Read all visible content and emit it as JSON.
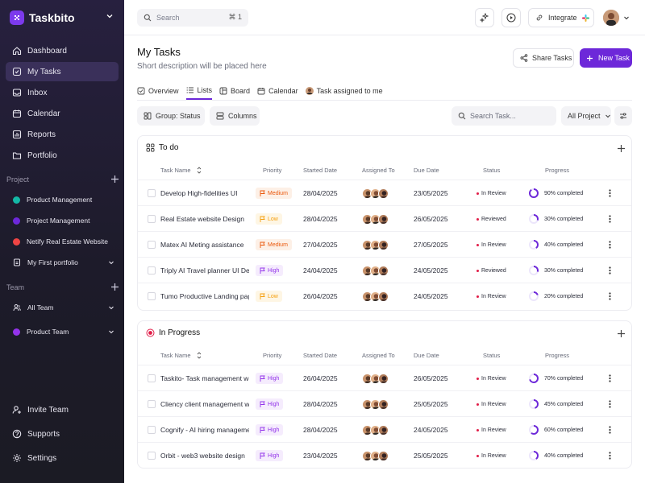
{
  "app": {
    "name": "Taskbito"
  },
  "nav": [
    {
      "label": "Dashboard",
      "icon": "home-icon",
      "active": false
    },
    {
      "label": "My Tasks",
      "icon": "checkbox-icon",
      "active": true
    },
    {
      "label": "Inbox",
      "icon": "inbox-icon",
      "active": false
    },
    {
      "label": "Calendar",
      "icon": "calendar-icon",
      "active": false
    },
    {
      "label": "Reports",
      "icon": "chart-icon",
      "active": false
    },
    {
      "label": "Portfolio",
      "icon": "folder-icon",
      "active": false
    }
  ],
  "projects_section": {
    "title": "Project",
    "items": [
      {
        "label": "Product Management",
        "color": "#14b8a6"
      },
      {
        "label": "Project Management",
        "color": "#6d28d9"
      },
      {
        "label": "Netify Real Estate Website",
        "color": "#ef4444"
      },
      {
        "label": "My First portfolio",
        "color": "",
        "icon": "document-icon",
        "has_chevron": true
      }
    ]
  },
  "team_section": {
    "title": "Team",
    "items": [
      {
        "label": "All Team",
        "icon": "users-icon"
      },
      {
        "label": "Product Team",
        "color": "#9333ea"
      }
    ]
  },
  "bottom_nav": [
    {
      "label": "Invite Team",
      "icon": "user-plus-icon"
    },
    {
      "label": "Supports",
      "icon": "help-icon"
    },
    {
      "label": "Settings",
      "icon": "gear-icon"
    }
  ],
  "topbar": {
    "search_placeholder": "Search",
    "shortcut": "⌘ 1",
    "integrate_label": "Integrate"
  },
  "page": {
    "title": "My Tasks",
    "subtitle": "Short description will be placed here",
    "share_label": "Share Tasks",
    "new_label": "New Task"
  },
  "tabs": [
    {
      "label": "Overview",
      "icon": "overview-icon",
      "active": false
    },
    {
      "label": "Lists",
      "icon": "list-icon",
      "active": true
    },
    {
      "label": "Board",
      "icon": "board-icon",
      "active": false
    },
    {
      "label": "Calendar",
      "icon": "calendar-icon",
      "active": false
    },
    {
      "label": "Task assigned to me",
      "icon": "avatar",
      "active": false
    }
  ],
  "filters": {
    "group_label": "Group: Status",
    "columns_label": "Columns",
    "search_placeholder": "Search Task...",
    "project_select": "All Project"
  },
  "columns": {
    "name": "Task Name",
    "priority": "Priority",
    "started": "Started Date",
    "assigned": "Assigned To",
    "due": "Due Date",
    "status": "Status",
    "progress": "Progress"
  },
  "colors": {
    "accent": "#6d28d9",
    "medium": "#ea580c",
    "low": "#f59e0b",
    "high": "#9333ea",
    "in_review_dot": "#e11d48"
  },
  "groups": [
    {
      "title": "To do",
      "icon": "grid-icon",
      "rows": [
        {
          "name": "Develop High-fidelities UI",
          "priority": "Medium",
          "started": "28/04/2025",
          "due": "23/05/2025",
          "status": "In Review",
          "progress": 90,
          "progress_label": "90% completed"
        },
        {
          "name": "Real Estate website Design",
          "priority": "Low",
          "started": "28/04/2025",
          "due": "26/05/2025",
          "status": "Reviewed",
          "progress": 30,
          "progress_label": "30% completed"
        },
        {
          "name": "Matex AI Meting assistance",
          "priority": "Medium",
          "started": "27/04/2025",
          "due": "27/05/2025",
          "status": "In Review",
          "progress": 40,
          "progress_label": "40% completed"
        },
        {
          "name": "Triply AI Travel planner UI Design",
          "priority": "High",
          "started": "24/04/2025",
          "due": "24/05/2025",
          "status": "Reviewed",
          "progress": 30,
          "progress_label": "30% completed"
        },
        {
          "name": "Tumo Productive Landing page",
          "priority": "Low",
          "started": "26/04/2025",
          "due": "24/05/2025",
          "status": "In Review",
          "progress": 20,
          "progress_label": "20% completed"
        }
      ]
    },
    {
      "title": "In Progress",
      "icon": "progress-circle-icon",
      "rows": [
        {
          "name": "Taskito- Task management website",
          "priority": "High",
          "started": "26/04/2025",
          "due": "26/05/2025",
          "status": "In Review",
          "progress": 70,
          "progress_label": "70% completed"
        },
        {
          "name": "Cliency client management website",
          "priority": "High",
          "started": "28/04/2025",
          "due": "25/05/2025",
          "status": "In Review",
          "progress": 45,
          "progress_label": "45% completed"
        },
        {
          "name": "Cognify - AI hiring management",
          "priority": "High",
          "started": "28/04/2025",
          "due": "24/05/2025",
          "status": "In Review",
          "progress": 60,
          "progress_label": "60% completed"
        },
        {
          "name": "Orbit - web3 website design",
          "priority": "High",
          "started": "23/04/2025",
          "due": "25/05/2025",
          "status": "In Review",
          "progress": 40,
          "progress_label": "40% completed"
        }
      ]
    }
  ]
}
